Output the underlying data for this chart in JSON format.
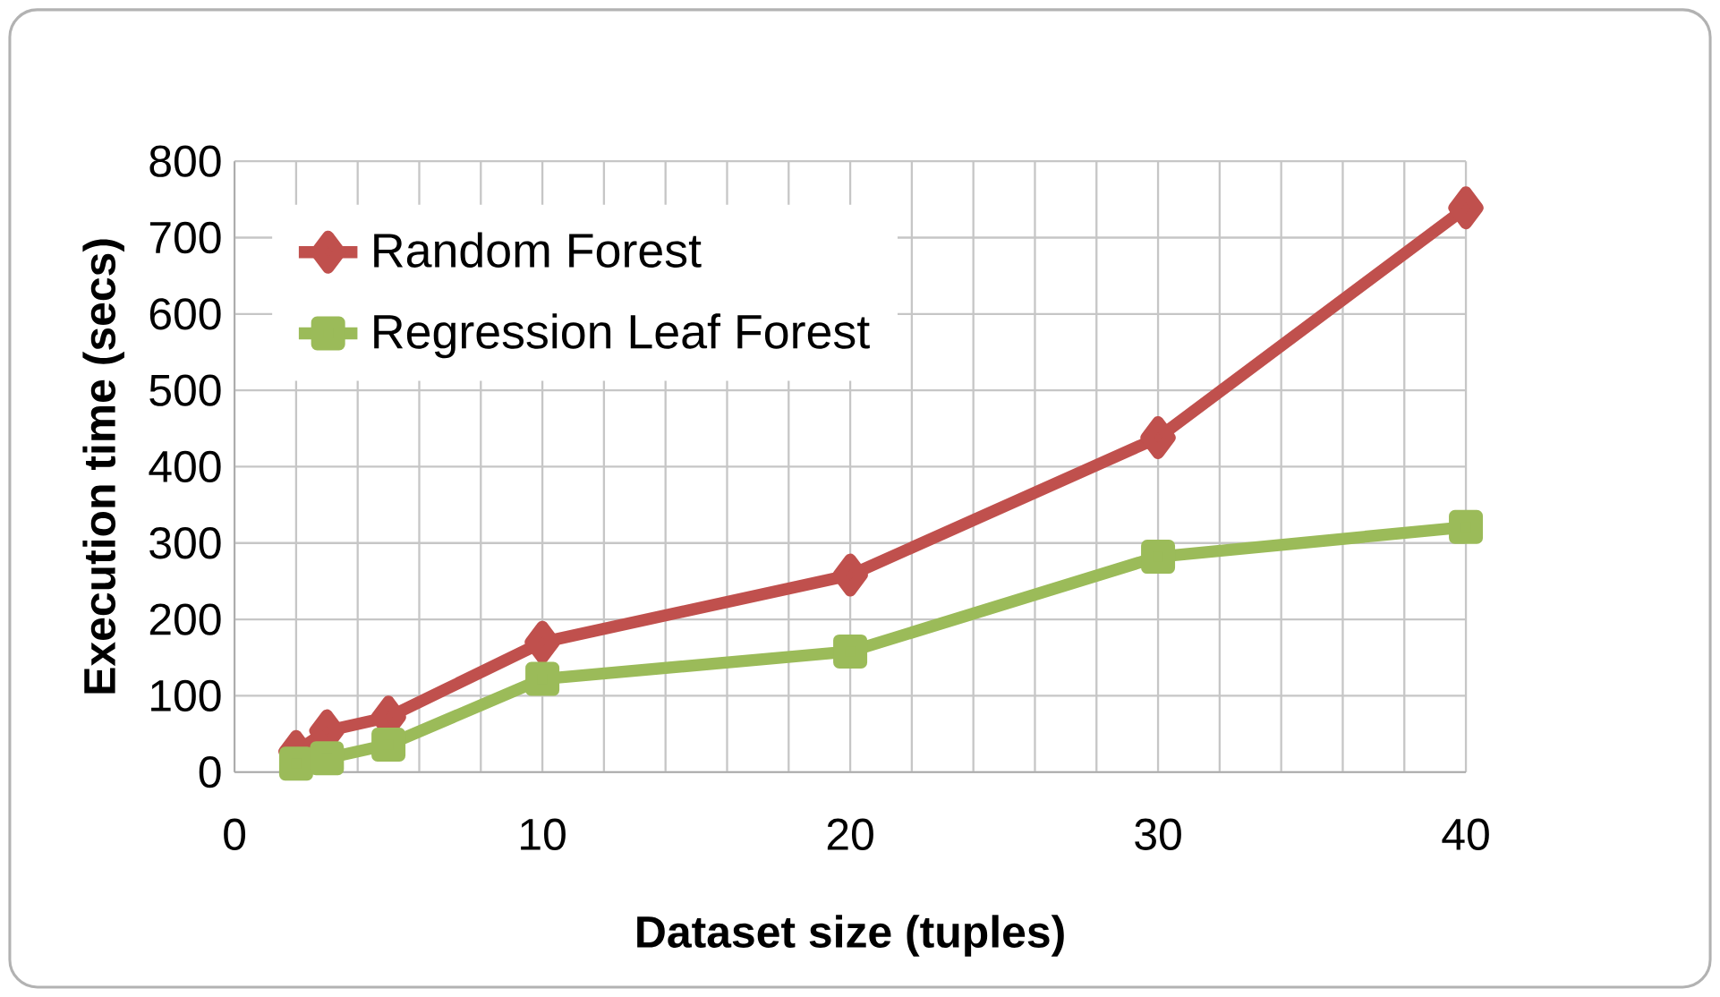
{
  "chart_data": {
    "type": "line",
    "xlabel": "Dataset size (tuples)",
    "ylabel": "Execution time (secs)",
    "x": [
      2,
      3,
      5,
      10,
      20,
      30,
      40
    ],
    "series": [
      {
        "name": "Random Forest",
        "color": "#c0504d",
        "marker": "diamond",
        "values": [
          27,
          54,
          72,
          170,
          258,
          438,
          739
        ]
      },
      {
        "name": "Regression Leaf Forest",
        "color": "#9bbb59",
        "marker": "square",
        "values": [
          11,
          18,
          36,
          122,
          158,
          282,
          321
        ]
      }
    ],
    "xlim": [
      0,
      40
    ],
    "ylim": [
      0,
      800
    ],
    "xticks": [
      0,
      {
        "value": 2,
        "label": null
      },
      {
        "value": 4,
        "label": null
      },
      {
        "value": 6,
        "label": null
      },
      {
        "value": 8,
        "label": null
      },
      10,
      {
        "value": 12,
        "label": null
      },
      {
        "value": 14,
        "label": null
      },
      {
        "value": 16,
        "label": null
      },
      {
        "value": 18,
        "label": null
      },
      20,
      {
        "value": 22,
        "label": null
      },
      {
        "value": 24,
        "label": null
      },
      {
        "value": 26,
        "label": null
      },
      {
        "value": 28,
        "label": null
      },
      30,
      {
        "value": 32,
        "label": null
      },
      {
        "value": 34,
        "label": null
      },
      {
        "value": 36,
        "label": null
      },
      {
        "value": 38,
        "label": null
      },
      40
    ],
    "yticks": [
      0,
      100,
      200,
      300,
      400,
      500,
      600,
      700,
      800
    ],
    "grid": true,
    "legend": "top left",
    "line_style": "solid"
  }
}
